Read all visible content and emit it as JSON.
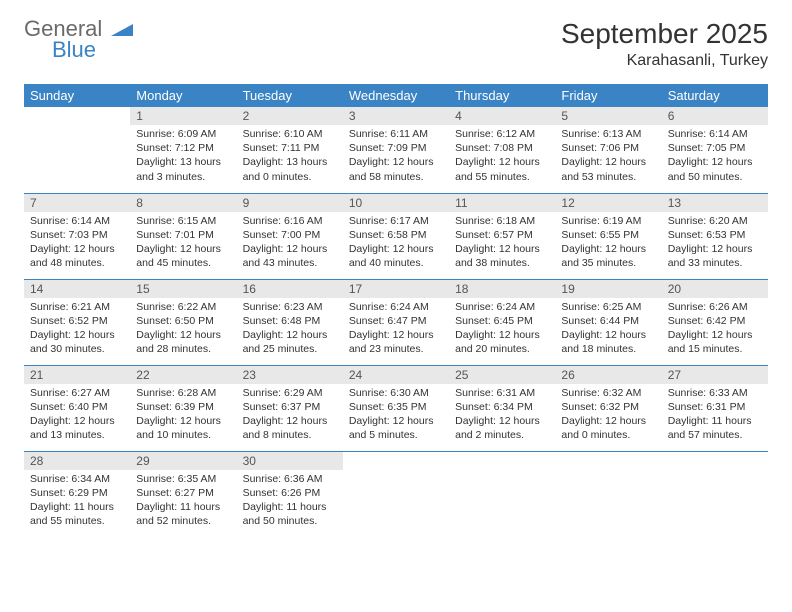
{
  "logo": {
    "general": "General",
    "blue": "Blue"
  },
  "title": "September 2025",
  "location": "Karahasanli, Turkey",
  "colors": {
    "header_bg": "#3a83c4",
    "header_text": "#ffffff",
    "daynum_bg": "#e8e8e8",
    "border": "#3a83c4",
    "text": "#333333",
    "logo_gray": "#6b6b6b",
    "logo_blue": "#3a83c4"
  },
  "fonts": {
    "title_size": 28,
    "location_size": 16,
    "header_size": 13,
    "cell_size": 10.5
  },
  "dayHeaders": [
    "Sunday",
    "Monday",
    "Tuesday",
    "Wednesday",
    "Thursday",
    "Friday",
    "Saturday"
  ],
  "weeks": [
    [
      null,
      {
        "n": "1",
        "sr": "6:09 AM",
        "ss": "7:12 PM",
        "dl": "13 hours and 3 minutes."
      },
      {
        "n": "2",
        "sr": "6:10 AM",
        "ss": "7:11 PM",
        "dl": "13 hours and 0 minutes."
      },
      {
        "n": "3",
        "sr": "6:11 AM",
        "ss": "7:09 PM",
        "dl": "12 hours and 58 minutes."
      },
      {
        "n": "4",
        "sr": "6:12 AM",
        "ss": "7:08 PM",
        "dl": "12 hours and 55 minutes."
      },
      {
        "n": "5",
        "sr": "6:13 AM",
        "ss": "7:06 PM",
        "dl": "12 hours and 53 minutes."
      },
      {
        "n": "6",
        "sr": "6:14 AM",
        "ss": "7:05 PM",
        "dl": "12 hours and 50 minutes."
      }
    ],
    [
      {
        "n": "7",
        "sr": "6:14 AM",
        "ss": "7:03 PM",
        "dl": "12 hours and 48 minutes."
      },
      {
        "n": "8",
        "sr": "6:15 AM",
        "ss": "7:01 PM",
        "dl": "12 hours and 45 minutes."
      },
      {
        "n": "9",
        "sr": "6:16 AM",
        "ss": "7:00 PM",
        "dl": "12 hours and 43 minutes."
      },
      {
        "n": "10",
        "sr": "6:17 AM",
        "ss": "6:58 PM",
        "dl": "12 hours and 40 minutes."
      },
      {
        "n": "11",
        "sr": "6:18 AM",
        "ss": "6:57 PM",
        "dl": "12 hours and 38 minutes."
      },
      {
        "n": "12",
        "sr": "6:19 AM",
        "ss": "6:55 PM",
        "dl": "12 hours and 35 minutes."
      },
      {
        "n": "13",
        "sr": "6:20 AM",
        "ss": "6:53 PM",
        "dl": "12 hours and 33 minutes."
      }
    ],
    [
      {
        "n": "14",
        "sr": "6:21 AM",
        "ss": "6:52 PM",
        "dl": "12 hours and 30 minutes."
      },
      {
        "n": "15",
        "sr": "6:22 AM",
        "ss": "6:50 PM",
        "dl": "12 hours and 28 minutes."
      },
      {
        "n": "16",
        "sr": "6:23 AM",
        "ss": "6:48 PM",
        "dl": "12 hours and 25 minutes."
      },
      {
        "n": "17",
        "sr": "6:24 AM",
        "ss": "6:47 PM",
        "dl": "12 hours and 23 minutes."
      },
      {
        "n": "18",
        "sr": "6:24 AM",
        "ss": "6:45 PM",
        "dl": "12 hours and 20 minutes."
      },
      {
        "n": "19",
        "sr": "6:25 AM",
        "ss": "6:44 PM",
        "dl": "12 hours and 18 minutes."
      },
      {
        "n": "20",
        "sr": "6:26 AM",
        "ss": "6:42 PM",
        "dl": "12 hours and 15 minutes."
      }
    ],
    [
      {
        "n": "21",
        "sr": "6:27 AM",
        "ss": "6:40 PM",
        "dl": "12 hours and 13 minutes."
      },
      {
        "n": "22",
        "sr": "6:28 AM",
        "ss": "6:39 PM",
        "dl": "12 hours and 10 minutes."
      },
      {
        "n": "23",
        "sr": "6:29 AM",
        "ss": "6:37 PM",
        "dl": "12 hours and 8 minutes."
      },
      {
        "n": "24",
        "sr": "6:30 AM",
        "ss": "6:35 PM",
        "dl": "12 hours and 5 minutes."
      },
      {
        "n": "25",
        "sr": "6:31 AM",
        "ss": "6:34 PM",
        "dl": "12 hours and 2 minutes."
      },
      {
        "n": "26",
        "sr": "6:32 AM",
        "ss": "6:32 PM",
        "dl": "12 hours and 0 minutes."
      },
      {
        "n": "27",
        "sr": "6:33 AM",
        "ss": "6:31 PM",
        "dl": "11 hours and 57 minutes."
      }
    ],
    [
      {
        "n": "28",
        "sr": "6:34 AM",
        "ss": "6:29 PM",
        "dl": "11 hours and 55 minutes."
      },
      {
        "n": "29",
        "sr": "6:35 AM",
        "ss": "6:27 PM",
        "dl": "11 hours and 52 minutes."
      },
      {
        "n": "30",
        "sr": "6:36 AM",
        "ss": "6:26 PM",
        "dl": "11 hours and 50 minutes."
      },
      null,
      null,
      null,
      null
    ]
  ],
  "labels": {
    "sunrise": "Sunrise:",
    "sunset": "Sunset:",
    "daylight": "Daylight:"
  }
}
